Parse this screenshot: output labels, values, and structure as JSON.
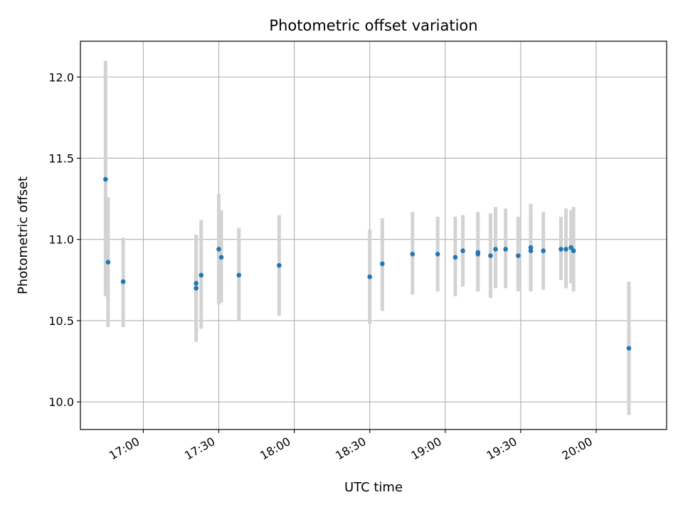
{
  "chart_data": {
    "type": "scatter",
    "title": "Photometric offset variation",
    "xlabel": "UTC time",
    "ylabel": "Photometric offset",
    "x_ticks": [
      "17:00",
      "17:30",
      "18:00",
      "18:30",
      "19:00",
      "19:30",
      "20:00"
    ],
    "y_ticks": [
      "10.0",
      "10.5",
      "11.0",
      "11.5",
      "12.0"
    ],
    "xlim": [
      "16:35",
      "20:28"
    ],
    "ylim": [
      9.83,
      12.22
    ],
    "grid": true,
    "colors": {
      "point": "#1f77b4",
      "errorbar": "#d3d3d3",
      "grid": "#b0b0b0"
    },
    "series": [
      {
        "points": [
          {
            "x": "16:45",
            "y": 11.37,
            "err_low": 10.65,
            "err_high": 12.1
          },
          {
            "x": "16:46",
            "y": 10.86,
            "err_low": 10.46,
            "err_high": 11.26
          },
          {
            "x": "16:52",
            "y": 10.74,
            "err_low": 10.46,
            "err_high": 11.01
          },
          {
            "x": "17:21",
            "y": 10.7,
            "err_low": 10.37,
            "err_high": 11.03
          },
          {
            "x": "17:21",
            "y": 10.73,
            "err_low": 10.45,
            "err_high": 11.03
          },
          {
            "x": "17:23",
            "y": 10.78,
            "err_low": 10.45,
            "err_high": 11.12
          },
          {
            "x": "17:30",
            "y": 10.94,
            "err_low": 10.6,
            "err_high": 11.28
          },
          {
            "x": "17:31",
            "y": 10.89,
            "err_low": 10.61,
            "err_high": 11.18
          },
          {
            "x": "17:38",
            "y": 10.78,
            "err_low": 10.5,
            "err_high": 11.07
          },
          {
            "x": "17:54",
            "y": 10.84,
            "err_low": 10.53,
            "err_high": 11.15
          },
          {
            "x": "18:30",
            "y": 10.77,
            "err_low": 10.48,
            "err_high": 11.06
          },
          {
            "x": "18:35",
            "y": 10.85,
            "err_low": 10.56,
            "err_high": 11.13
          },
          {
            "x": "18:47",
            "y": 10.91,
            "err_low": 10.66,
            "err_high": 11.17
          },
          {
            "x": "18:57",
            "y": 10.91,
            "err_low": 10.68,
            "err_high": 11.14
          },
          {
            "x": "19:04",
            "y": 10.89,
            "err_low": 10.65,
            "err_high": 11.14
          },
          {
            "x": "19:07",
            "y": 10.93,
            "err_low": 10.71,
            "err_high": 11.15
          },
          {
            "x": "19:13",
            "y": 10.92,
            "err_low": 10.68,
            "err_high": 11.17
          },
          {
            "x": "19:13",
            "y": 10.91,
            "err_low": 10.68,
            "err_high": 11.16
          },
          {
            "x": "19:18",
            "y": 10.9,
            "err_low": 10.64,
            "err_high": 11.16
          },
          {
            "x": "19:20",
            "y": 10.94,
            "err_low": 10.7,
            "err_high": 11.2
          },
          {
            "x": "19:24",
            "y": 10.94,
            "err_low": 10.7,
            "err_high": 11.19
          },
          {
            "x": "19:29",
            "y": 10.9,
            "err_low": 10.68,
            "err_high": 11.14
          },
          {
            "x": "19:34",
            "y": 10.93,
            "err_low": 10.68,
            "err_high": 11.17
          },
          {
            "x": "19:34",
            "y": 10.95,
            "err_low": 10.69,
            "err_high": 11.22
          },
          {
            "x": "19:39",
            "y": 10.93,
            "err_low": 10.69,
            "err_high": 11.17
          },
          {
            "x": "19:46",
            "y": 10.94,
            "err_low": 10.75,
            "err_high": 11.14
          },
          {
            "x": "19:48",
            "y": 10.94,
            "err_low": 10.7,
            "err_high": 11.19
          },
          {
            "x": "19:50",
            "y": 10.95,
            "err_low": 10.73,
            "err_high": 11.18
          },
          {
            "x": "19:51",
            "y": 10.93,
            "err_low": 10.68,
            "err_high": 11.2
          },
          {
            "x": "20:13",
            "y": 10.33,
            "err_low": 9.92,
            "err_high": 10.74
          }
        ]
      }
    ]
  }
}
